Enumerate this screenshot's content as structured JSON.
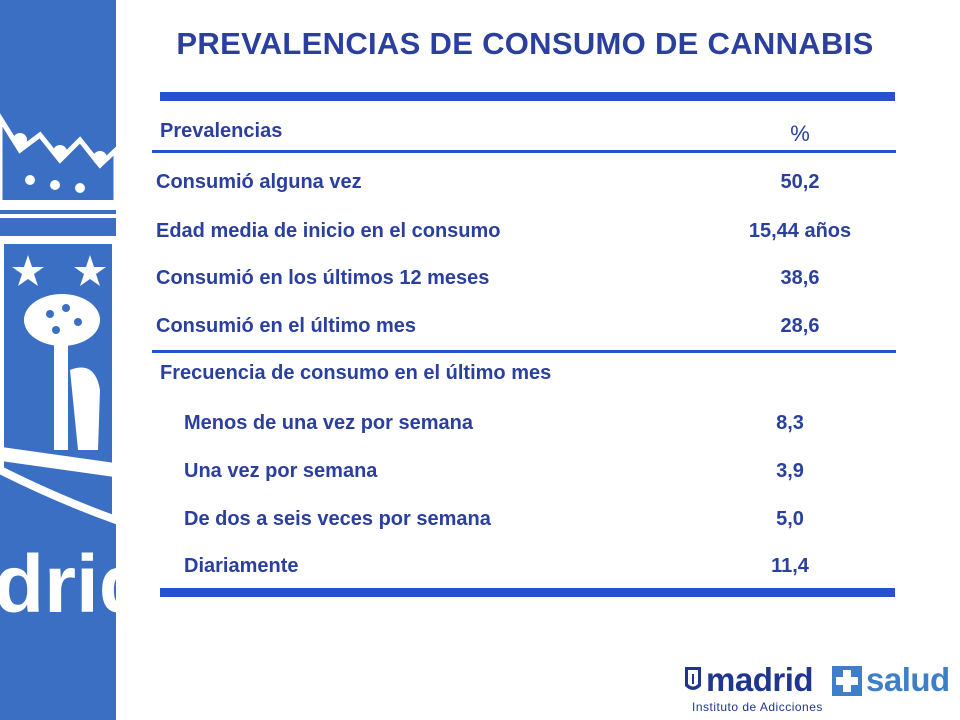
{
  "title": "PREVALENCIAS DE CONSUMO DE CANNABIS",
  "header": {
    "label": "Prevalencias",
    "unit": "%"
  },
  "rows": [
    {
      "label": "Consumió alguna vez",
      "value": "50,2"
    },
    {
      "label": "Edad media de inicio en el consumo",
      "value": "15,44 años"
    },
    {
      "label": "Consumió en los últimos 12 meses",
      "value": "38,6"
    },
    {
      "label": "Consumió en el último mes",
      "value": "28,6"
    }
  ],
  "frequency": {
    "title": "Frecuencia de consumo en el último mes",
    "items": [
      {
        "label": "Menos de una vez por semana",
        "value": "8,3"
      },
      {
        "label": "Una vez por semana",
        "value": "3,9"
      },
      {
        "label": "De dos a seis veces por semana",
        "value": "5,0"
      },
      {
        "label": "Diariamente",
        "value": "11,4"
      }
    ]
  },
  "sidebar": {
    "watermark": "drid"
  },
  "logo": {
    "brand": "madrid",
    "brand2": "salud",
    "subtitle": "Instituto de Adicciones"
  },
  "colors": {
    "accent": "#2851d2",
    "text": "#2a3f9e",
    "sidebar": "#3a6fc4"
  }
}
